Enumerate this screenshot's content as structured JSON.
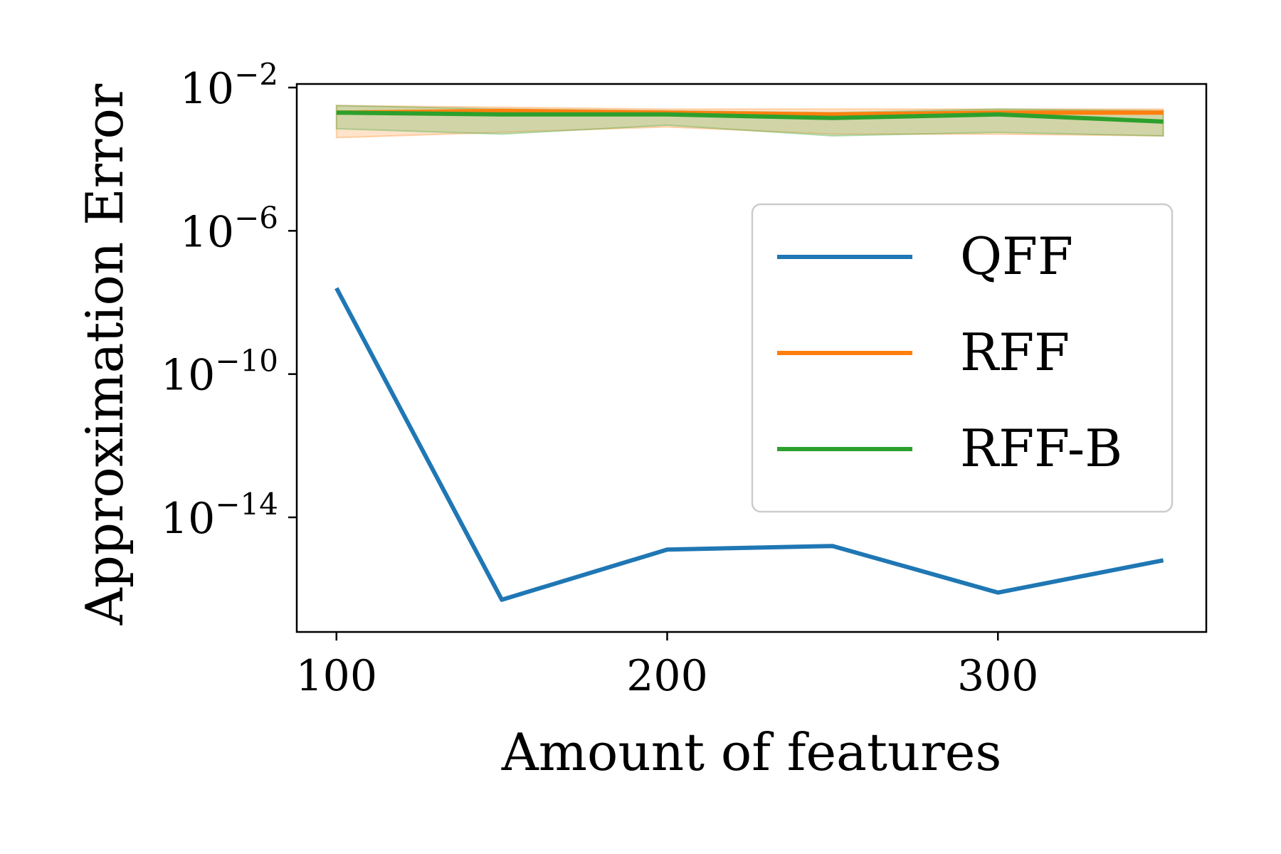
{
  "chart_data": {
    "type": "line",
    "xlabel": "Amount of features",
    "ylabel": "Approximation Error",
    "x": [
      100,
      150,
      200,
      250,
      300,
      350
    ],
    "xlim": [
      88,
      363
    ],
    "x_ticks": [
      100,
      200,
      300
    ],
    "x_tick_labels": [
      "100",
      "200",
      "300"
    ],
    "y_scale": "log",
    "ylim_log10": [
      -17.2,
      -1.9
    ],
    "y_ticks": [
      {
        "base": "10",
        "exponent": "−2"
      },
      {
        "base": "10",
        "exponent": "−6"
      },
      {
        "base": "10",
        "exponent": "−10"
      },
      {
        "base": "10",
        "exponent": "−14"
      }
    ],
    "y_tick_log10": [
      -2,
      -6,
      -10,
      -14
    ],
    "grid": false,
    "legend_position": "center-right",
    "series": [
      {
        "name": "QFF",
        "color": "#1f77b4",
        "values_log10": [
          -7.6,
          -16.3,
          -14.9,
          -14.8,
          -16.1,
          -15.2
        ]
      },
      {
        "name": "RFF",
        "color": "#ff7f0e",
        "values_log10": [
          -2.7,
          -2.65,
          -2.7,
          -2.75,
          -2.7,
          -2.7
        ],
        "band_lower_log10": [
          -3.4,
          -3.25,
          -3.1,
          -3.3,
          -3.3,
          -3.35
        ],
        "band_upper_log10": [
          -2.5,
          -2.55,
          -2.6,
          -2.6,
          -2.6,
          -2.6
        ]
      },
      {
        "name": "RFF-B",
        "color": "#2ca02c",
        "values_log10": [
          -2.7,
          -2.75,
          -2.75,
          -2.85,
          -2.75,
          -2.95
        ],
        "band_lower_log10": [
          -3.15,
          -3.3,
          -3.05,
          -3.35,
          -3.25,
          -3.35
        ],
        "band_upper_log10": [
          -2.5,
          -2.6,
          -2.65,
          -2.7,
          -2.6,
          -2.65
        ]
      }
    ]
  }
}
